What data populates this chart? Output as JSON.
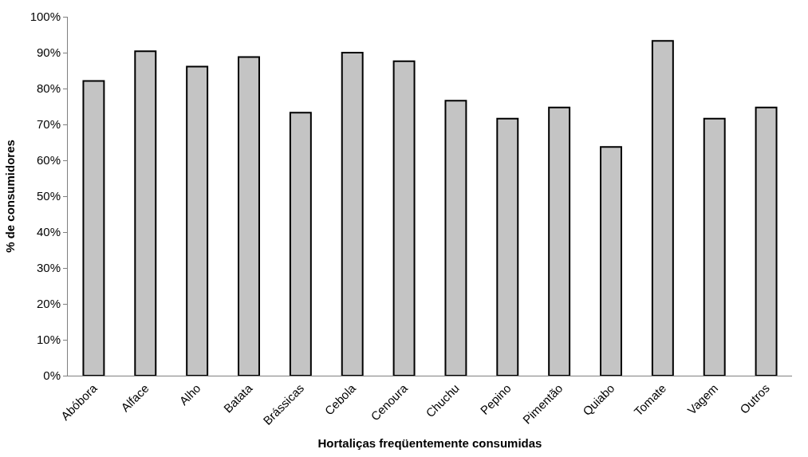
{
  "chart_data": {
    "type": "bar",
    "xlabel": "Hortaliças freqüentemente consumidas",
    "ylabel": "% de consumidores",
    "categories": [
      "Abóbora",
      "Alface",
      "Alho",
      "Batata",
      "Brássicas",
      "Cebola",
      "Cenoura",
      "Chuchu",
      "Pepino",
      "Pimentão",
      "Quiabo",
      "Tomate",
      "Vagem",
      "Outros"
    ],
    "values": [
      82.1,
      90.4,
      86.1,
      88.8,
      73.3,
      90.0,
      87.6,
      76.6,
      71.6,
      74.7,
      63.7,
      93.3,
      71.6,
      74.7
    ],
    "color": "#c4c4c4",
    "ylim": [
      0,
      100
    ],
    "yticks": [
      {
        "value": 0,
        "label": "0%"
      },
      {
        "value": 10,
        "label": "10%"
      },
      {
        "value": 20,
        "label": "20%"
      },
      {
        "value": 30,
        "label": "30%"
      },
      {
        "value": 40,
        "label": "40%"
      },
      {
        "value": 50,
        "label": "50%"
      },
      {
        "value": 60,
        "label": "60%"
      },
      {
        "value": 70,
        "label": "70%"
      },
      {
        "value": 80,
        "label": "80%"
      },
      {
        "value": 90,
        "label": "90%"
      },
      {
        "value": 100,
        "label": "100%"
      }
    ],
    "grid": false
  }
}
